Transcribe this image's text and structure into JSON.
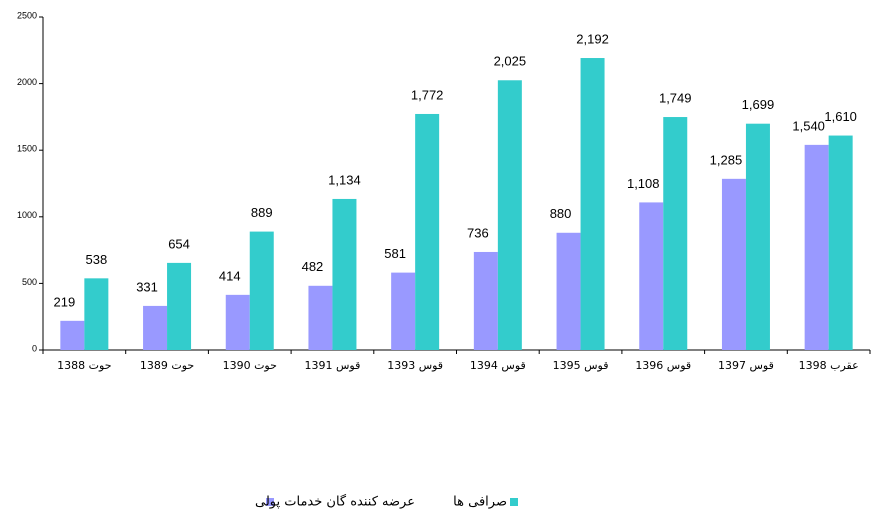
{
  "chart_data": {
    "type": "bar",
    "categories": [
      "حوت 1388",
      "حوت 1389",
      "حوت 1390",
      "قوس 1391",
      "قوس 1393",
      "قوس 1394",
      "قوس 1395",
      "قوس 1396",
      "قوس 1397",
      "عقرب 1398"
    ],
    "series": [
      {
        "name": "عرضه کننده گان خدمات پولی",
        "color": "#9999ff",
        "values": [
          219,
          331,
          414,
          482,
          581,
          736,
          880,
          1108,
          1285,
          1540
        ],
        "value_labels": [
          "219",
          "331",
          "414",
          "482",
          "581",
          "736",
          "880",
          "1,108",
          "1,285",
          "1,540"
        ]
      },
      {
        "name": "صرافی ها",
        "color": "#33cccc",
        "values": [
          538,
          654,
          889,
          1134,
          1772,
          2025,
          2192,
          1749,
          1699,
          1610
        ],
        "value_labels": [
          "538",
          "654",
          "889",
          "1,134",
          "1,772",
          "2,025",
          "2,192",
          "1,749",
          "1,699",
          "1,610"
        ]
      }
    ],
    "ylim": [
      0,
      2500
    ],
    "yticks": [
      0,
      500,
      1000,
      1500,
      2000,
      2500
    ],
    "grid": false
  }
}
